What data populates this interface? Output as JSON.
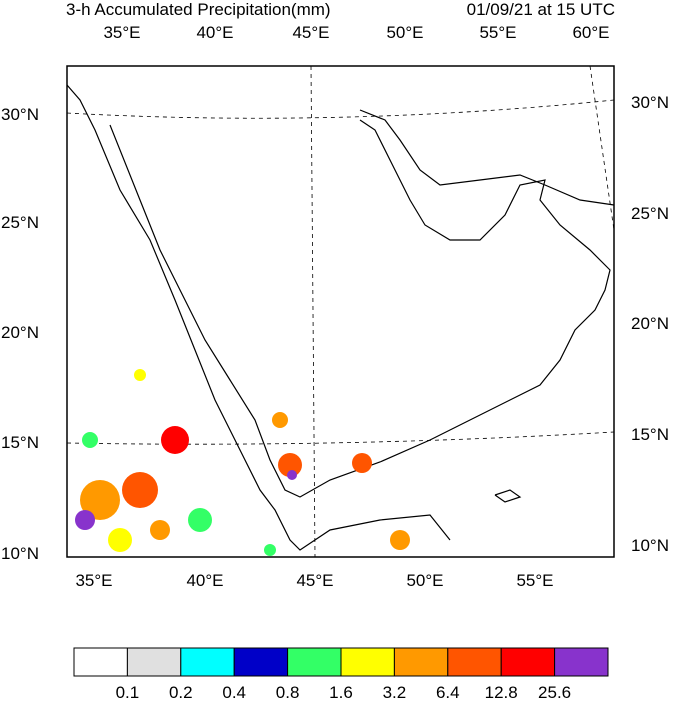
{
  "title": "3-h Accumulated Precipitation(mm)",
  "valid_time": "01/09/21 at 15 UTC",
  "map": {
    "top_lon_labels": [
      "35°E",
      "40°E",
      "45°E",
      "50°E",
      "55°E",
      "60°E"
    ],
    "bottom_lon_labels": [
      "35°E",
      "40°E",
      "45°E",
      "50°E",
      "55°E"
    ],
    "left_lat_labels": [
      "30°N",
      "25°N",
      "20°N",
      "15°N",
      "10°N"
    ],
    "right_lat_labels": [
      "30°N",
      "25°N",
      "20°N",
      "15°N",
      "10°N"
    ]
  },
  "colorbar": {
    "colors": [
      "#ffffff",
      "#e0e0e0",
      "#00ffff",
      "#0000c8",
      "#33ff66",
      "#ffff00",
      "#ff9900",
      "#ff5500",
      "#ff0000",
      "#8833cc"
    ],
    "levels": [
      0.1,
      0.2,
      0.4,
      0.8,
      1.6,
      3.2,
      6.4,
      12.8,
      25.6
    ]
  }
}
